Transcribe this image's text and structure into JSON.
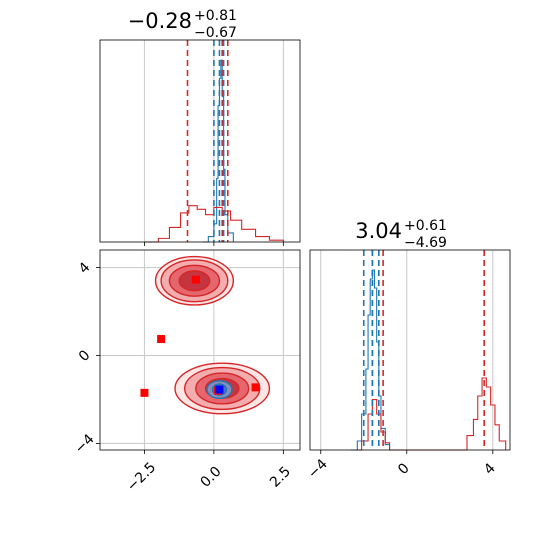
{
  "chart_data": [
    {
      "type": "histogram",
      "panel": "top-left",
      "title": {
        "median": "−0.28",
        "plus": "+0.81",
        "minus": "−0.67"
      },
      "xlim": [
        -4.1,
        3.1
      ],
      "grid": true,
      "series": [
        {
          "color": "#1f77b4",
          "x": [
            -0.4,
            -0.2,
            0.0,
            0.1,
            0.15,
            0.2,
            0.25,
            0.3,
            0.35,
            0.4,
            0.5,
            0.7
          ],
          "values": [
            0.0,
            0.03,
            0.1,
            0.35,
            0.75,
            0.9,
            1.0,
            0.8,
            0.4,
            0.15,
            0.05,
            0.0
          ]
        },
        {
          "color": "#d62728",
          "x": [
            -2.5,
            -2.0,
            -1.6,
            -1.2,
            -0.9,
            -0.6,
            -0.3,
            0.0,
            0.3,
            0.6,
            1.0,
            1.5,
            2.0,
            2.5
          ],
          "values": [
            0.0,
            0.02,
            0.08,
            0.16,
            0.2,
            0.18,
            0.15,
            0.19,
            0.17,
            0.12,
            0.07,
            0.03,
            0.01,
            0.0
          ]
        }
      ],
      "vlines": [
        {
          "color": "#d62728",
          "x": [
            -0.95,
            0.3,
            0.5
          ]
        },
        {
          "color": "#1f77b4",
          "x": [
            0.0,
            0.2,
            0.35
          ]
        }
      ]
    },
    {
      "type": "histogram",
      "panel": "bottom-right",
      "title": {
        "median": "3.04",
        "plus": "+0.61",
        "minus": "−4.69"
      },
      "xlim": [
        -4.5,
        4.8
      ],
      "xticks": [
        "−4",
        "0",
        "4"
      ],
      "xtick_values": [
        -4,
        0,
        4
      ],
      "grid": true,
      "series": [
        {
          "color": "#1f77b4",
          "x": [
            -2.6,
            -2.3,
            -2.1,
            -1.9,
            -1.8,
            -1.7,
            -1.6,
            -1.5,
            -1.4,
            -1.3,
            -1.2,
            -1.0,
            -0.8
          ],
          "values": [
            0.0,
            0.05,
            0.2,
            0.45,
            0.75,
            0.95,
            1.0,
            0.9,
            0.6,
            0.3,
            0.12,
            0.03,
            0.0
          ]
        },
        {
          "color": "#d62728",
          "x": [
            -2.4,
            -2.1,
            -1.8,
            -1.6,
            -1.4,
            -1.2,
            -1.0,
            -0.8,
            2.5,
            2.8,
            3.1,
            3.3,
            3.5,
            3.7,
            3.9,
            4.1,
            4.3,
            4.6
          ],
          "values": [
            0.0,
            0.05,
            0.2,
            0.28,
            0.2,
            0.1,
            0.04,
            0.0,
            0.0,
            0.08,
            0.17,
            0.3,
            0.4,
            0.35,
            0.25,
            0.14,
            0.05,
            0.0
          ]
        }
      ],
      "vlines": [
        {
          "color": "#d62728",
          "x": [
            -1.6,
            -1.1,
            3.6
          ]
        },
        {
          "color": "#1f77b4",
          "x": [
            -2.0,
            -1.6,
            -1.3
          ]
        }
      ]
    },
    {
      "type": "scatter",
      "panel": "bottom-left",
      "xlim": [
        -4.1,
        3.1
      ],
      "ylim": [
        -4.3,
        4.8
      ],
      "xticks": [
        "−2.5",
        "0.0",
        "2.5"
      ],
      "xtick_values": [
        -2.5,
        0.0,
        2.5
      ],
      "yticks": [
        "−4",
        "0",
        "4"
      ],
      "ytick_values": [
        -4,
        0,
        4
      ],
      "grid": true,
      "contours": [
        {
          "color": "#d62728",
          "cx": -0.7,
          "cy": 3.4,
          "rx": [
            0.55,
            0.9,
            1.2,
            1.4
          ],
          "ry": [
            0.45,
            0.7,
            0.95,
            1.1
          ]
        },
        {
          "color": "#d62728",
          "cx": 0.3,
          "cy": -1.5,
          "rx": [
            0.6,
            0.95,
            1.35,
            1.7
          ],
          "ry": [
            0.45,
            0.7,
            0.95,
            1.15
          ]
        },
        {
          "color": "#1f77b4",
          "cx": 0.2,
          "cy": -1.55,
          "rx": [
            0.25,
            0.45
          ],
          "ry": [
            0.25,
            0.4
          ]
        }
      ],
      "markers": [
        {
          "color": "#ff0000",
          "x": -0.65,
          "y": 3.45
        },
        {
          "color": "#ff0000",
          "x": -1.9,
          "y": 0.75
        },
        {
          "color": "#ff0000",
          "x": -2.5,
          "y": -1.7
        },
        {
          "color": "#ff0000",
          "x": 1.5,
          "y": -1.45
        },
        {
          "color": "#ff0000",
          "x": 0.15,
          "y": -1.6
        },
        {
          "color": "#0000ff",
          "x": 0.2,
          "y": -1.55
        }
      ]
    }
  ]
}
